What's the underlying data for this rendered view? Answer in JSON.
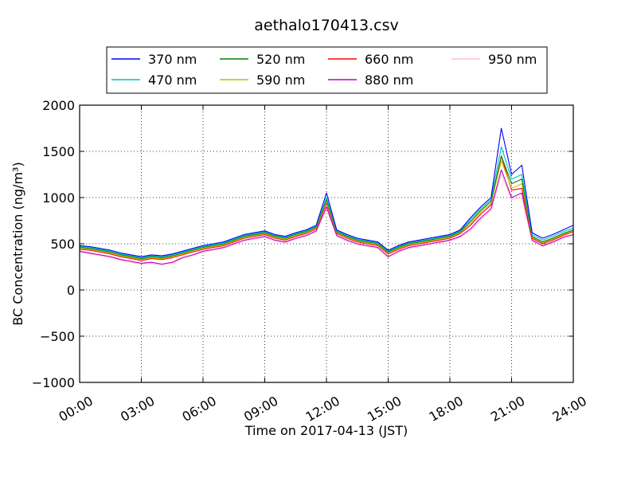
{
  "chart_data": {
    "type": "line",
    "title": "aethalo170413.csv",
    "xlabel": "Time on 2017-04-13 (JST)",
    "ylabel": "BC Concentration (ng/m³)",
    "xlim_hours": [
      0,
      24
    ],
    "ylim": [
      -1000,
      2000
    ],
    "x_ticks": [
      "00:00",
      "03:00",
      "06:00",
      "09:00",
      "12:00",
      "15:00",
      "18:00",
      "21:00",
      "24:00"
    ],
    "y_ticks": [
      "2000",
      "1500",
      "1000",
      "500",
      "0",
      "−500",
      "−1000"
    ],
    "grid": true,
    "legend_position": "top-center",
    "x_hours": [
      0,
      0.5,
      1,
      1.5,
      2,
      2.5,
      3,
      3.5,
      4,
      4.5,
      5,
      5.5,
      6,
      6.5,
      7,
      7.5,
      8,
      8.5,
      9,
      9.5,
      10,
      10.5,
      11,
      11.5,
      12,
      12.5,
      13,
      13.5,
      14,
      14.5,
      15,
      15.5,
      16,
      16.5,
      17,
      17.5,
      18,
      18.5,
      19,
      19.5,
      20,
      20.5,
      21,
      21.5,
      22,
      22.5,
      23,
      23.5,
      24
    ],
    "series": [
      {
        "name": "370 nm",
        "color": "#0000ff",
        "values": [
          480,
          470,
          450,
          430,
          400,
          380,
          360,
          380,
          370,
          390,
          420,
          450,
          480,
          500,
          520,
          560,
          600,
          620,
          640,
          600,
          580,
          620,
          650,
          700,
          1050,
          650,
          600,
          560,
          540,
          520,
          430,
          480,
          520,
          540,
          560,
          580,
          600,
          650,
          780,
          900,
          1000,
          1750,
          1250,
          1350,
          620,
          560,
          600,
          650,
          700
        ]
      },
      {
        "name": "470 nm",
        "color": "#00bfbf",
        "values": [
          470,
          460,
          440,
          420,
          390,
          370,
          350,
          370,
          360,
          380,
          410,
          440,
          470,
          490,
          510,
          550,
          590,
          610,
          630,
          590,
          570,
          610,
          640,
          690,
          1000,
          640,
          590,
          550,
          530,
          510,
          420,
          470,
          510,
          530,
          550,
          570,
          590,
          640,
          760,
          880,
          980,
          1550,
          1200,
          1250,
          600,
          540,
          580,
          630,
          670
        ]
      },
      {
        "name": "520 nm",
        "color": "#008000",
        "values": [
          460,
          450,
          430,
          410,
          380,
          360,
          340,
          360,
          350,
          370,
          400,
          430,
          460,
          480,
          500,
          540,
          580,
          600,
          620,
          580,
          560,
          600,
          630,
          680,
          980,
          630,
          580,
          540,
          520,
          500,
          410,
          460,
          500,
          520,
          540,
          560,
          580,
          630,
          740,
          860,
          960,
          1450,
          1150,
          1200,
          580,
          520,
          560,
          610,
          650
        ]
      },
      {
        "name": "590 nm",
        "color": "#bfbf00",
        "values": [
          450,
          440,
          420,
          400,
          370,
          350,
          330,
          350,
          340,
          360,
          390,
          420,
          450,
          470,
          490,
          530,
          570,
          590,
          610,
          570,
          550,
          590,
          620,
          670,
          960,
          620,
          570,
          530,
          510,
          490,
          400,
          450,
          490,
          510,
          530,
          550,
          570,
          620,
          720,
          840,
          940,
          1400,
          1100,
          1150,
          570,
          510,
          550,
          600,
          640
        ]
      },
      {
        "name": "660 nm",
        "color": "#ff0000",
        "values": [
          440,
          430,
          410,
          390,
          360,
          340,
          320,
          340,
          330,
          350,
          380,
          410,
          440,
          460,
          480,
          520,
          560,
          580,
          600,
          560,
          540,
          580,
          610,
          660,
          940,
          610,
          560,
          520,
          500,
          480,
          390,
          440,
          480,
          500,
          520,
          540,
          560,
          610,
          700,
          820,
          920,
          1450,
          1080,
          1100,
          560,
          500,
          540,
          590,
          630
        ]
      },
      {
        "name": "880 nm",
        "color": "#bf00bf",
        "values": [
          420,
          400,
          380,
          360,
          330,
          310,
          290,
          300,
          280,
          300,
          350,
          380,
          420,
          440,
          460,
          500,
          540,
          560,
          580,
          540,
          520,
          560,
          590,
          640,
          900,
          590,
          540,
          500,
          480,
          460,
          360,
          420,
          460,
          480,
          500,
          520,
          540,
          580,
          660,
          780,
          880,
          1300,
          1000,
          1050,
          540,
          480,
          520,
          570,
          600
        ]
      },
      {
        "name": "950 nm",
        "color": "#ffc0cb",
        "values": [
          410,
          390,
          370,
          350,
          320,
          300,
          280,
          290,
          270,
          290,
          340,
          370,
          410,
          430,
          450,
          490,
          530,
          550,
          570,
          530,
          510,
          550,
          580,
          630,
          880,
          580,
          530,
          490,
          470,
          450,
          350,
          410,
          450,
          470,
          490,
          510,
          530,
          570,
          640,
          760,
          860,
          1250,
          980,
          1000,
          530,
          470,
          510,
          560,
          590
        ]
      }
    ]
  }
}
